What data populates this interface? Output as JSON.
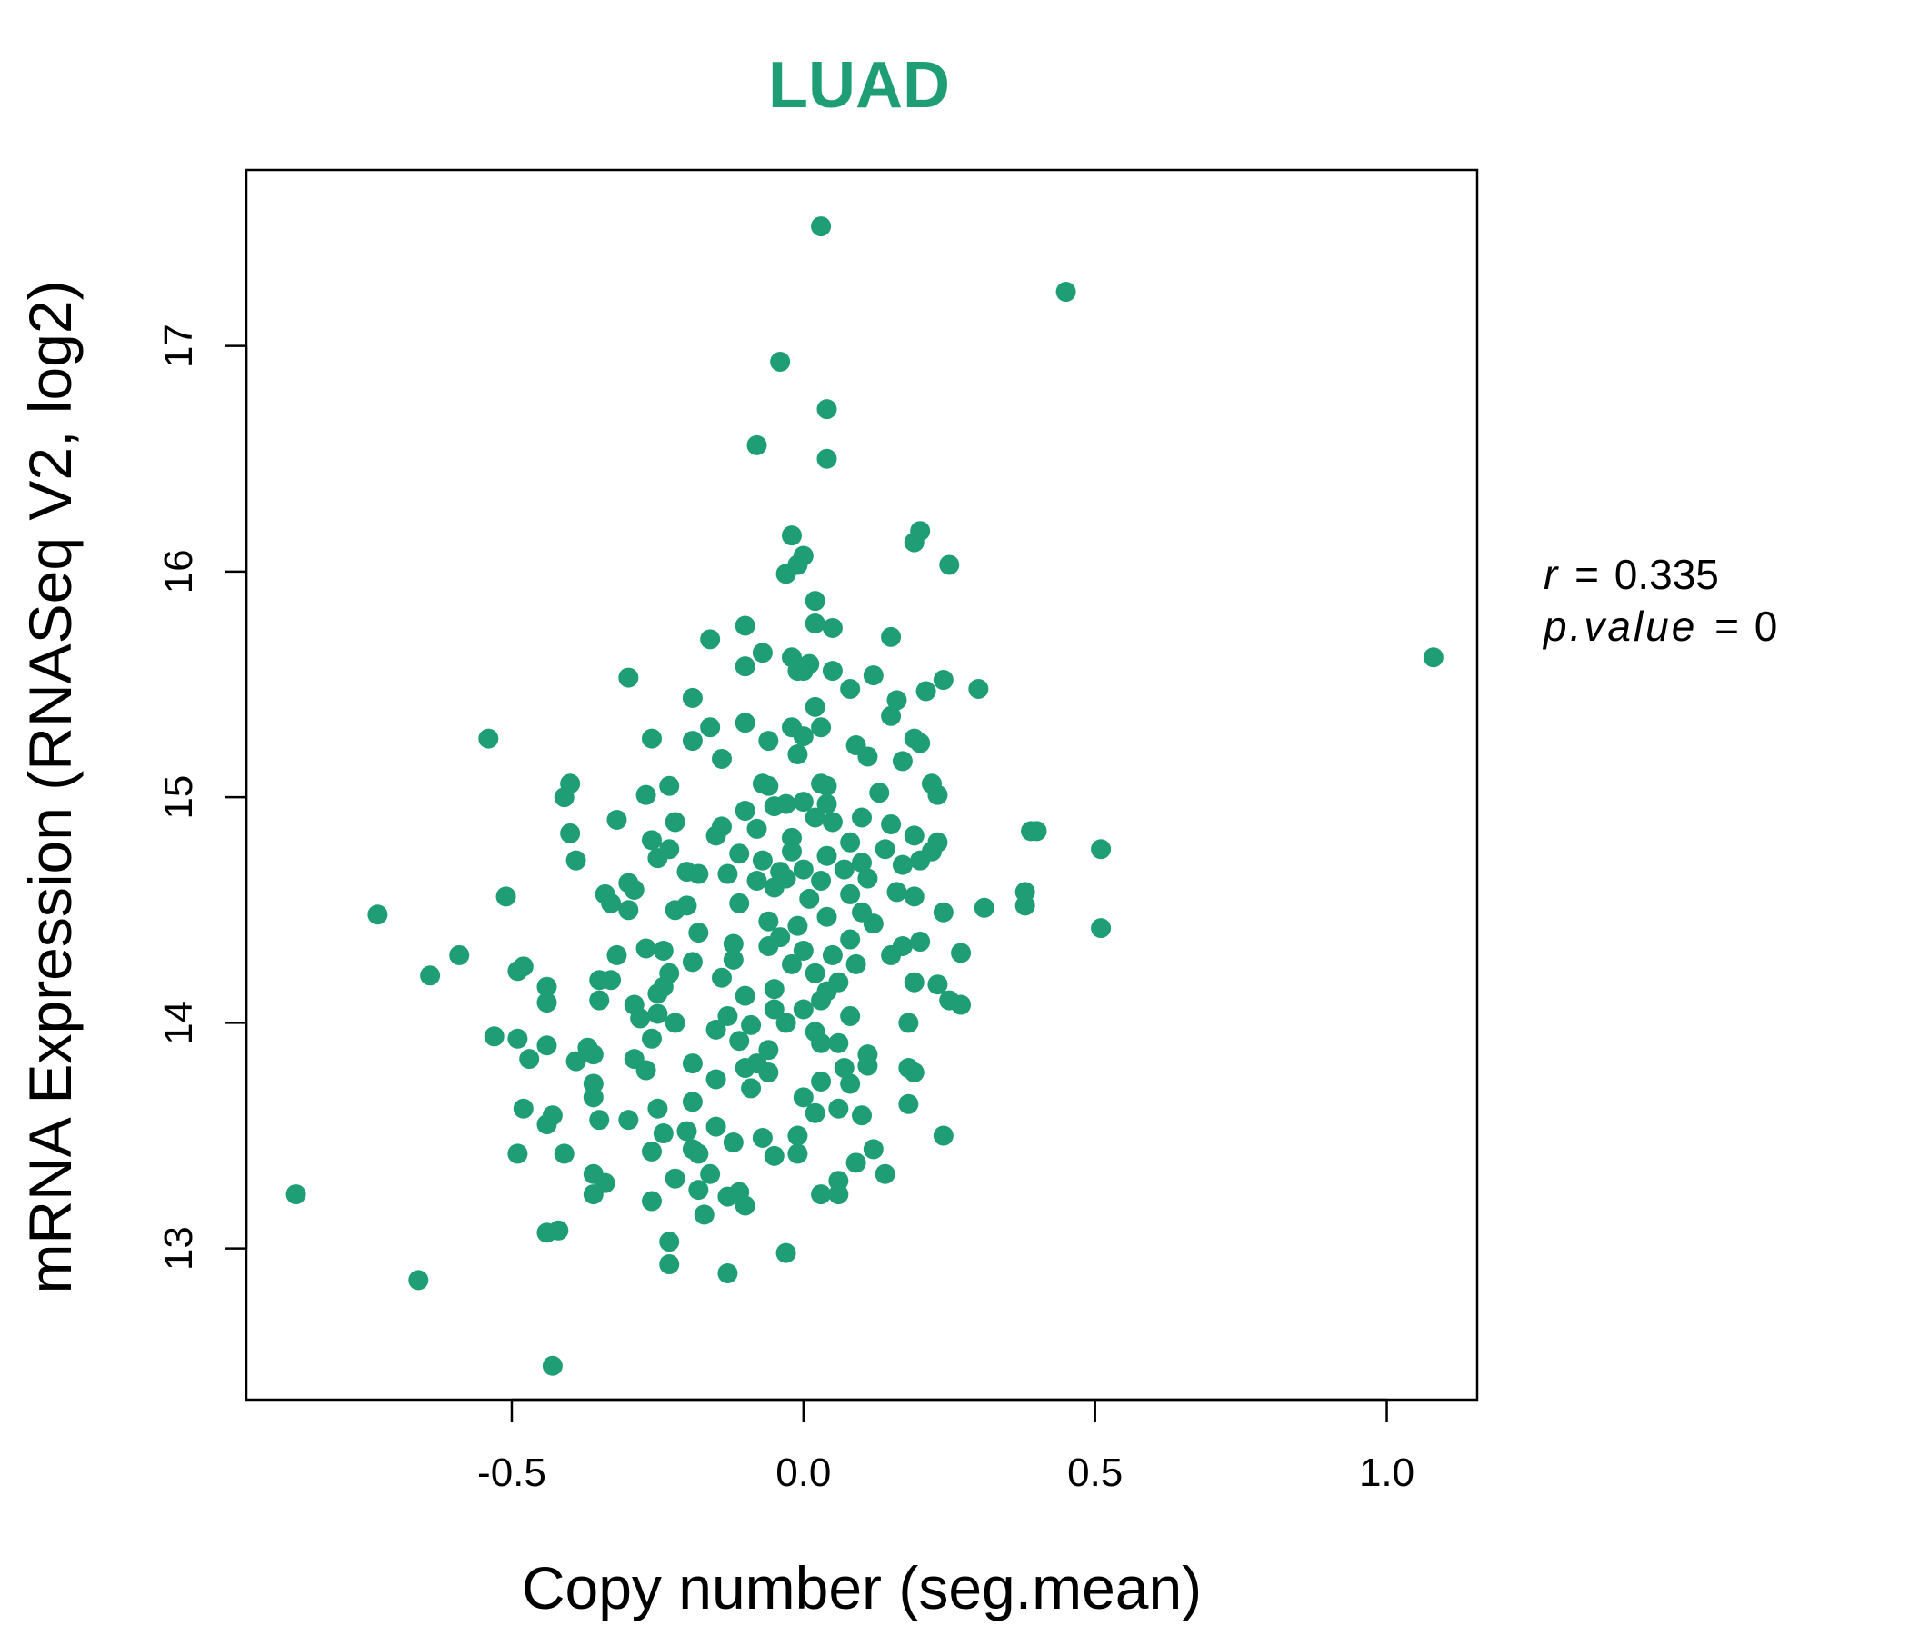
{
  "colors": {
    "accent": "#1f9e76",
    "axis": "#000000"
  },
  "chart_data": {
    "type": "scatter",
    "title": "LUAD",
    "xlabel": "Copy number (seg.mean)",
    "ylabel": "mRNA Expression (RNASeq V2, log2)",
    "xlim": [
      -0.955,
      1.155
    ],
    "ylim": [
      12.33,
      17.78
    ],
    "x_ticks": [
      -0.5,
      0.0,
      0.5,
      1.0
    ],
    "x_tick_labels": [
      "-0.5",
      "0.0",
      "0.5",
      "1.0"
    ],
    "y_ticks": [
      13,
      14,
      15,
      16,
      17
    ],
    "y_tick_labels": [
      "13",
      "14",
      "15",
      "16",
      "17"
    ],
    "grid": false,
    "annotation": {
      "r_label": "r",
      "r_value": "0.335",
      "p_label": "p.value",
      "p_value": "0"
    },
    "points": [
      [
        0.03,
        17.53
      ],
      [
        0.45,
        17.24
      ],
      [
        -0.04,
        16.93
      ],
      [
        0.04,
        16.72
      ],
      [
        -0.08,
        16.56
      ],
      [
        0.04,
        16.5
      ],
      [
        -0.02,
        16.16
      ],
      [
        0.0,
        16.07
      ],
      [
        -0.01,
        16.03
      ],
      [
        -0.03,
        15.99
      ],
      [
        0.2,
        16.18
      ],
      [
        0.19,
        16.13
      ],
      [
        0.25,
        16.03
      ],
      [
        0.02,
        15.87
      ],
      [
        0.02,
        15.77
      ],
      [
        0.05,
        15.75
      ],
      [
        -0.1,
        15.76
      ],
      [
        -0.07,
        15.64
      ],
      [
        -0.16,
        15.7
      ],
      [
        -0.1,
        15.58
      ],
      [
        0.15,
        15.71
      ],
      [
        -0.3,
        15.53
      ],
      [
        -0.02,
        15.62
      ],
      [
        0.01,
        15.59
      ],
      [
        0.0,
        15.56
      ],
      [
        0.05,
        15.56
      ],
      [
        -0.01,
        15.56
      ],
      [
        0.12,
        15.54
      ],
      [
        0.24,
        15.52
      ],
      [
        0.3,
        15.48
      ],
      [
        0.21,
        15.47
      ],
      [
        0.08,
        15.48
      ],
      [
        0.16,
        15.43
      ],
      [
        -0.19,
        15.44
      ],
      [
        0.02,
        15.4
      ],
      [
        0.15,
        15.36
      ],
      [
        -0.16,
        15.31
      ],
      [
        -0.1,
        15.33
      ],
      [
        -0.02,
        15.31
      ],
      [
        0.03,
        15.31
      ],
      [
        -0.26,
        15.26
      ],
      [
        -0.54,
        15.26
      ],
      [
        -0.19,
        15.25
      ],
      [
        0.0,
        15.27
      ],
      [
        -0.06,
        15.25
      ],
      [
        0.09,
        15.23
      ],
      [
        0.19,
        15.26
      ],
      [
        0.2,
        15.24
      ],
      [
        -0.01,
        15.19
      ],
      [
        0.11,
        15.18
      ],
      [
        -0.14,
        15.17
      ],
      [
        0.17,
        15.16
      ],
      [
        -0.23,
        15.05
      ],
      [
        -0.07,
        15.06
      ],
      [
        0.03,
        15.06
      ],
      [
        -0.06,
        15.05
      ],
      [
        -0.4,
        15.06
      ],
      [
        0.04,
        15.05
      ],
      [
        0.22,
        15.06
      ],
      [
        -0.41,
        15.0
      ],
      [
        -0.27,
        15.01
      ],
      [
        0.13,
        15.02
      ],
      [
        0.23,
        15.01
      ],
      [
        0.0,
        14.98
      ],
      [
        0.04,
        14.97
      ],
      [
        -0.03,
        14.97
      ],
      [
        -0.05,
        14.96
      ],
      [
        -0.1,
        14.94
      ],
      [
        0.02,
        14.91
      ],
      [
        0.1,
        14.91
      ],
      [
        -0.32,
        14.9
      ],
      [
        -0.22,
        14.89
      ],
      [
        0.05,
        14.89
      ],
      [
        0.15,
        14.88
      ],
      [
        -0.14,
        14.87
      ],
      [
        -0.08,
        14.86
      ],
      [
        0.19,
        14.83
      ],
      [
        0.39,
        14.85
      ],
      [
        0.4,
        14.85
      ],
      [
        -0.4,
        14.84
      ],
      [
        -0.15,
        14.83
      ],
      [
        -0.26,
        14.81
      ],
      [
        0.23,
        14.8
      ],
      [
        -0.02,
        14.82
      ],
      [
        0.08,
        14.8
      ],
      [
        -0.23,
        14.77
      ],
      [
        0.14,
        14.77
      ],
      [
        0.22,
        14.76
      ],
      [
        -0.11,
        14.75
      ],
      [
        0.51,
        14.77
      ],
      [
        -0.02,
        14.76
      ],
      [
        0.04,
        14.74
      ],
      [
        -0.25,
        14.73
      ],
      [
        -0.07,
        14.72
      ],
      [
        0.2,
        14.72
      ],
      [
        0.1,
        14.71
      ],
      [
        -0.39,
        14.72
      ],
      [
        0.17,
        14.7
      ],
      [
        -0.2,
        14.67
      ],
      [
        0.07,
        14.68
      ],
      [
        0.0,
        14.68
      ],
      [
        -0.04,
        14.67
      ],
      [
        -0.13,
        14.66
      ],
      [
        -0.18,
        14.66
      ],
      [
        0.11,
        14.64
      ],
      [
        -0.08,
        14.63
      ],
      [
        -0.03,
        14.64
      ],
      [
        0.03,
        14.63
      ],
      [
        -0.3,
        14.62
      ],
      [
        -0.29,
        14.59
      ],
      [
        -0.05,
        14.6
      ],
      [
        0.38,
        14.58
      ],
      [
        0.16,
        14.58
      ],
      [
        0.08,
        14.57
      ],
      [
        -0.34,
        14.57
      ],
      [
        -0.51,
        14.56
      ],
      [
        0.19,
        14.56
      ],
      [
        0.01,
        14.55
      ],
      [
        -0.11,
        14.53
      ],
      [
        -0.33,
        14.53
      ],
      [
        -0.2,
        14.52
      ],
      [
        0.38,
        14.52
      ],
      [
        -0.3,
        14.5
      ],
      [
        0.31,
        14.51
      ],
      [
        0.24,
        14.49
      ],
      [
        -0.22,
        14.5
      ],
      [
        0.1,
        14.49
      ],
      [
        -0.73,
        14.48
      ],
      [
        0.04,
        14.47
      ],
      [
        -0.06,
        14.45
      ],
      [
        0.12,
        14.44
      ],
      [
        0.51,
        14.42
      ],
      [
        -0.01,
        14.43
      ],
      [
        -0.18,
        14.4
      ],
      [
        -0.04,
        14.38
      ],
      [
        0.08,
        14.37
      ],
      [
        0.2,
        14.36
      ],
      [
        -0.12,
        14.35
      ],
      [
        -0.06,
        14.34
      ],
      [
        0.17,
        14.34
      ],
      [
        -0.27,
        14.33
      ],
      [
        -0.24,
        14.32
      ],
      [
        0.0,
        14.32
      ],
      [
        0.05,
        14.3
      ],
      [
        -0.32,
        14.3
      ],
      [
        0.27,
        14.31
      ],
      [
        -0.59,
        14.3
      ],
      [
        -0.12,
        14.28
      ],
      [
        0.15,
        14.3
      ],
      [
        -0.19,
        14.27
      ],
      [
        -0.02,
        14.26
      ],
      [
        0.09,
        14.26
      ],
      [
        -0.48,
        14.25
      ],
      [
        -0.49,
        14.23
      ],
      [
        -0.23,
        14.22
      ],
      [
        0.02,
        14.22
      ],
      [
        -0.64,
        14.21
      ],
      [
        -0.35,
        14.19
      ],
      [
        -0.33,
        14.19
      ],
      [
        -0.14,
        14.2
      ],
      [
        0.06,
        14.18
      ],
      [
        0.19,
        14.18
      ],
      [
        0.23,
        14.17
      ],
      [
        -0.24,
        14.16
      ],
      [
        -0.44,
        14.16
      ],
      [
        -0.05,
        14.15
      ],
      [
        0.04,
        14.14
      ],
      [
        -0.25,
        14.13
      ],
      [
        -0.1,
        14.12
      ],
      [
        0.25,
        14.1
      ],
      [
        -0.35,
        14.1
      ],
      [
        -0.44,
        14.09
      ],
      [
        0.03,
        14.1
      ],
      [
        -0.29,
        14.08
      ],
      [
        0.27,
        14.08
      ],
      [
        0.0,
        14.06
      ],
      [
        -0.05,
        14.06
      ],
      [
        -0.25,
        14.04
      ],
      [
        0.08,
        14.03
      ],
      [
        -0.13,
        14.03
      ],
      [
        -0.28,
        14.02
      ],
      [
        -0.22,
        14.0
      ],
      [
        0.18,
        14.0
      ],
      [
        -0.03,
        14.0
      ],
      [
        -0.09,
        13.99
      ],
      [
        -0.15,
        13.97
      ],
      [
        0.02,
        13.96
      ],
      [
        -0.53,
        13.94
      ],
      [
        -0.49,
        13.93
      ],
      [
        -0.26,
        13.93
      ],
      [
        -0.11,
        13.92
      ],
      [
        0.06,
        13.91
      ],
      [
        0.03,
        13.91
      ],
      [
        -0.44,
        13.9
      ],
      [
        -0.37,
        13.89
      ],
      [
        -0.06,
        13.88
      ],
      [
        -0.36,
        13.86
      ],
      [
        0.11,
        13.86
      ],
      [
        -0.29,
        13.84
      ],
      [
        -0.47,
        13.84
      ],
      [
        -0.39,
        13.83
      ],
      [
        -0.19,
        13.82
      ],
      [
        -0.08,
        13.82
      ],
      [
        0.11,
        13.81
      ],
      [
        0.19,
        13.78
      ],
      [
        0.18,
        13.8
      ],
      [
        -0.1,
        13.8
      ],
      [
        0.07,
        13.8
      ],
      [
        -0.27,
        13.79
      ],
      [
        -0.06,
        13.78
      ],
      [
        0.03,
        13.74
      ],
      [
        -0.15,
        13.75
      ],
      [
        -0.36,
        13.73
      ],
      [
        0.08,
        13.73
      ],
      [
        -0.09,
        13.71
      ],
      [
        -0.36,
        13.67
      ],
      [
        0.0,
        13.67
      ],
      [
        0.18,
        13.64
      ],
      [
        -0.19,
        13.65
      ],
      [
        -0.48,
        13.62
      ],
      [
        0.06,
        13.62
      ],
      [
        -0.25,
        13.62
      ],
      [
        0.02,
        13.6
      ],
      [
        0.1,
        13.59
      ],
      [
        -0.43,
        13.59
      ],
      [
        -0.3,
        13.57
      ],
      [
        -0.44,
        13.55
      ],
      [
        -0.35,
        13.57
      ],
      [
        -0.15,
        13.54
      ],
      [
        -0.2,
        13.52
      ],
      [
        -0.24,
        13.51
      ],
      [
        0.24,
        13.5
      ],
      [
        -0.01,
        13.5
      ],
      [
        -0.07,
        13.49
      ],
      [
        -0.12,
        13.47
      ],
      [
        -0.19,
        13.44
      ],
      [
        0.12,
        13.44
      ],
      [
        -0.26,
        13.43
      ],
      [
        -0.41,
        13.42
      ],
      [
        -0.01,
        13.42
      ],
      [
        -0.18,
        13.42
      ],
      [
        -0.05,
        13.41
      ],
      [
        -0.49,
        13.42
      ],
      [
        0.09,
        13.38
      ],
      [
        -0.36,
        13.33
      ],
      [
        -0.16,
        13.33
      ],
      [
        -0.22,
        13.31
      ],
      [
        0.14,
        13.33
      ],
      [
        0.06,
        13.3
      ],
      [
        -0.34,
        13.29
      ],
      [
        -0.26,
        13.21
      ],
      [
        -0.11,
        13.25
      ],
      [
        -0.18,
        13.26
      ],
      [
        -0.87,
        13.24
      ],
      [
        0.03,
        13.24
      ],
      [
        0.06,
        13.24
      ],
      [
        -0.36,
        13.24
      ],
      [
        -0.13,
        13.23
      ],
      [
        -0.1,
        13.19
      ],
      [
        -0.17,
        13.15
      ],
      [
        -0.44,
        13.07
      ],
      [
        -0.42,
        13.08
      ],
      [
        -0.23,
        13.03
      ],
      [
        -0.03,
        12.98
      ],
      [
        -0.23,
        12.93
      ],
      [
        -0.13,
        12.89
      ],
      [
        -0.66,
        12.86
      ],
      [
        -0.43,
        12.48
      ],
      [
        1.08,
        15.62
      ]
    ]
  }
}
